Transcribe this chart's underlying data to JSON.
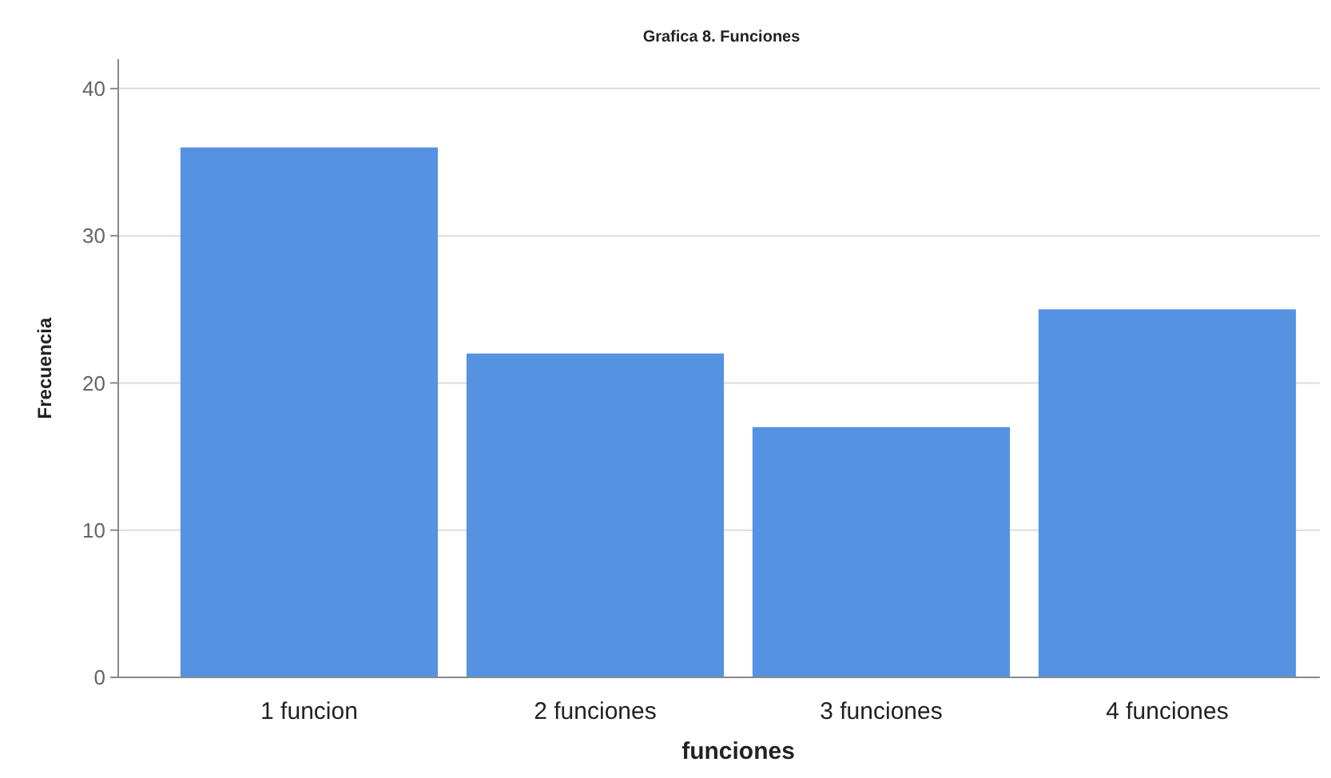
{
  "chart_data": {
    "type": "bar",
    "title": "Grafica 8. Funciones",
    "xlabel": "funciones",
    "ylabel": "Frecuencia",
    "categories": [
      "1 funcion",
      "2 funciones",
      "3 funciones",
      "4 funciones"
    ],
    "values": [
      36,
      22,
      17,
      25
    ],
    "color": "#5592e2",
    "ylim": [
      0,
      42
    ],
    "yticks": [
      0,
      10,
      20,
      30,
      40
    ],
    "grid": "y"
  }
}
